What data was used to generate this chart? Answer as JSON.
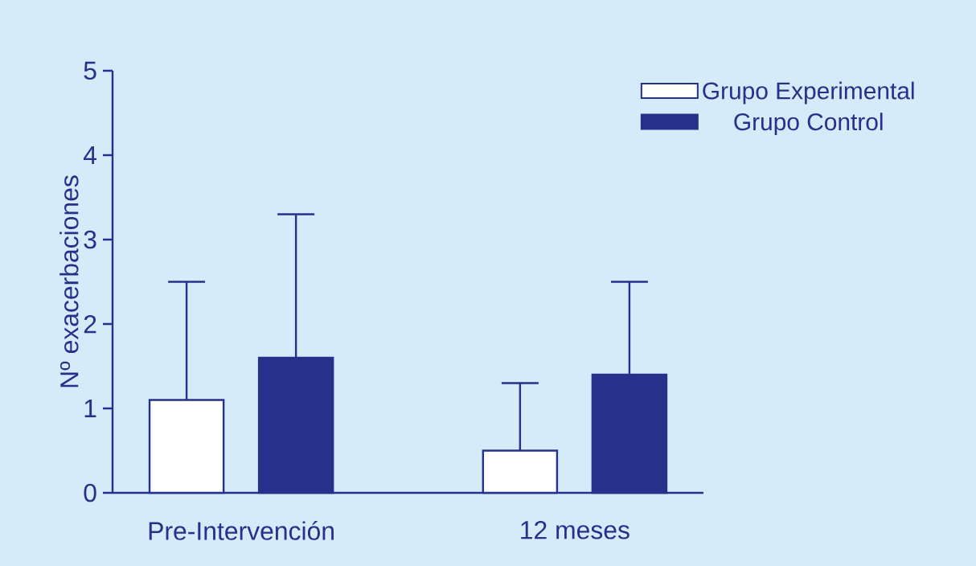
{
  "chart_data": {
    "type": "bar",
    "ylabel": "Nº exacerbaciones",
    "categories": [
      "Pre-Intervención",
      "12 meses"
    ],
    "ylim": [
      0,
      5
    ],
    "yticks": [
      0,
      1,
      2,
      3,
      4,
      5
    ],
    "legend": "top right",
    "series": [
      {
        "name": "Grupo Experimental",
        "color": "#ffffff",
        "values": [
          1.1,
          0.5
        ],
        "errors": [
          [
            1.1,
            2.5
          ],
          [
            0.5,
            1.3
          ]
        ]
      },
      {
        "name": "Grupo Control",
        "color": "#27308a",
        "values": [
          1.6,
          1.4
        ],
        "errors": [
          [
            1.6,
            3.3
          ],
          [
            1.4,
            2.5
          ]
        ]
      }
    ]
  }
}
